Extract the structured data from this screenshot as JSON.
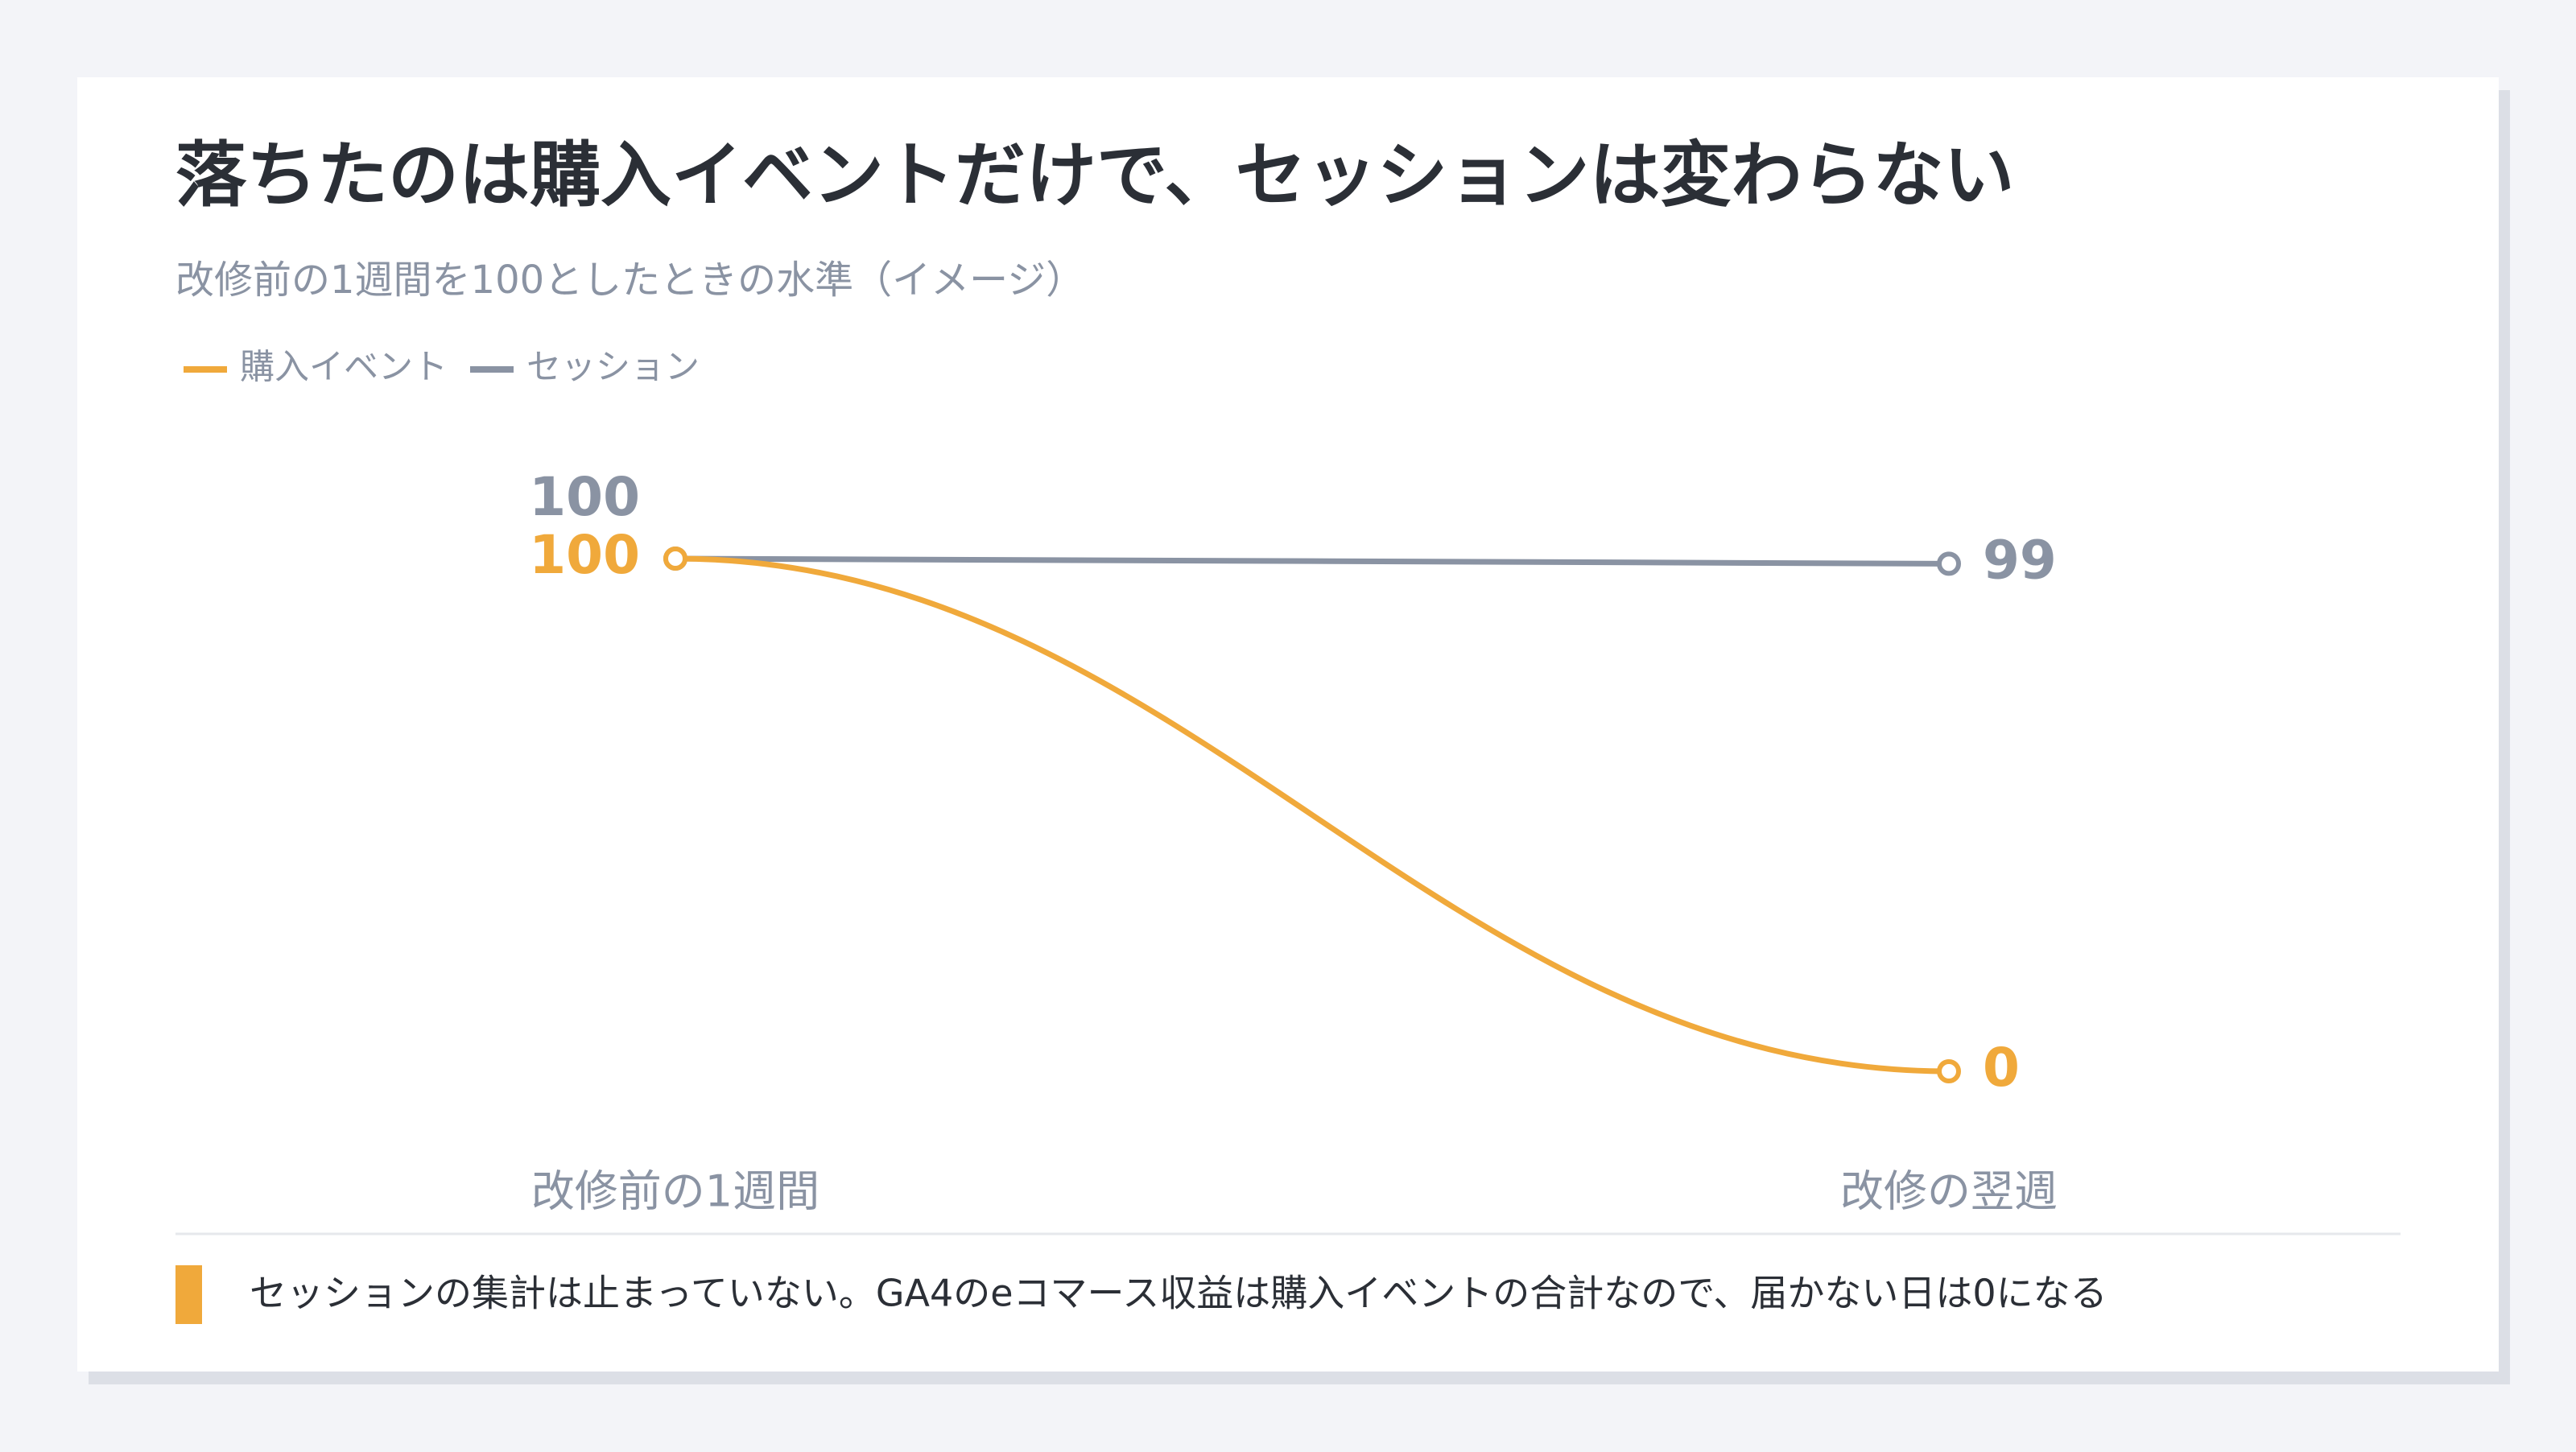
{
  "chart_data": {
    "type": "line",
    "title": "落ちたのは購入イベントだけで、セッションは変わらない",
    "subtitle": "改修前の1週間を100としたときの水準（イメージ）",
    "categories": [
      "改修前の1週間",
      "改修の翌週"
    ],
    "series": [
      {
        "name": "購入イベント",
        "color": "#f0a93b",
        "values": [
          100,
          0
        ]
      },
      {
        "name": "セッション",
        "color": "#8a93a3",
        "values": [
          100,
          99
        ]
      }
    ],
    "note": "セッションの集計は止まっていない。GA4のeコマース収益は購入イベントの合計なので、届かない日は0になる"
  }
}
